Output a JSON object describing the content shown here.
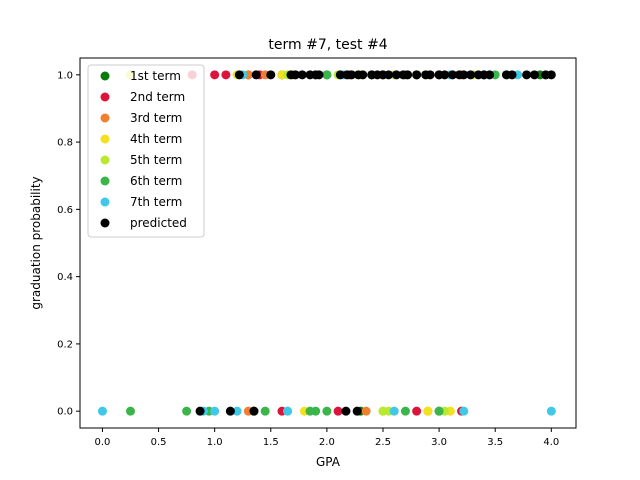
{
  "chart_data": {
    "type": "scatter",
    "title": "term #7, test #4",
    "xlabel": "GPA",
    "ylabel": "graduation probability",
    "xlim": [
      -0.2,
      4.22
    ],
    "ylim": [
      -0.05,
      1.05
    ],
    "xticks": [
      0.0,
      0.5,
      1.0,
      1.5,
      2.0,
      2.5,
      3.0,
      3.5,
      4.0
    ],
    "xtick_labels": [
      "0.0",
      "0.5",
      "1.0",
      "1.5",
      "2.0",
      "2.5",
      "3.0",
      "3.5",
      "4.0"
    ],
    "yticks": [
      0.0,
      0.2,
      0.4,
      0.6,
      0.8,
      1.0
    ],
    "ytick_labels": [
      "0.0",
      "0.2",
      "0.4",
      "0.6",
      "0.8",
      "1.0"
    ],
    "grid": false,
    "legend_position": "upper-left",
    "series": [
      {
        "name": "1st term",
        "color": "#0b7a0b",
        "points": [
          [
            0.25,
            1.0
          ],
          [
            1.3,
            1.0
          ],
          [
            1.6,
            1.0
          ],
          [
            2.0,
            1.0
          ],
          [
            2.4,
            1.0
          ],
          [
            2.8,
            1.0
          ],
          [
            3.4,
            1.0
          ],
          [
            3.9,
            1.0
          ],
          [
            1.35,
            0.0
          ],
          [
            2.3,
            0.0
          ],
          [
            3.0,
            0.0
          ]
        ]
      },
      {
        "name": "2nd term",
        "color": "#dc143c",
        "points": [
          [
            0.8,
            1.0
          ],
          [
            1.0,
            1.0
          ],
          [
            1.1,
            1.0
          ],
          [
            1.4,
            1.0
          ],
          [
            2.2,
            1.0
          ],
          [
            3.0,
            1.0
          ],
          [
            1.6,
            0.0
          ],
          [
            2.1,
            0.0
          ],
          [
            2.8,
            0.0
          ],
          [
            3.2,
            0.0
          ]
        ]
      },
      {
        "name": "3rd term",
        "color": "#f08030",
        "points": [
          [
            1.3,
            1.0
          ],
          [
            1.45,
            1.0
          ],
          [
            1.7,
            1.0
          ],
          [
            2.5,
            1.0
          ],
          [
            3.2,
            1.0
          ],
          [
            1.3,
            0.0
          ],
          [
            2.35,
            0.0
          ],
          [
            2.9,
            0.0
          ]
        ]
      },
      {
        "name": "4th term",
        "color": "#f5e01e",
        "points": [
          [
            0.25,
            1.0
          ],
          [
            1.2,
            1.0
          ],
          [
            1.6,
            1.0
          ],
          [
            2.3,
            1.0
          ],
          [
            2.9,
            1.0
          ],
          [
            3.6,
            1.0
          ],
          [
            1.8,
            0.0
          ],
          [
            2.5,
            0.0
          ],
          [
            2.9,
            0.0
          ],
          [
            3.1,
            0.0
          ]
        ]
      },
      {
        "name": "5th term",
        "color": "#b8e830",
        "points": [
          [
            1.65,
            1.0
          ],
          [
            2.1,
            1.0
          ],
          [
            2.6,
            1.0
          ],
          [
            3.3,
            1.0
          ],
          [
            1.65,
            0.0
          ],
          [
            2.5,
            0.0
          ],
          [
            2.55,
            0.0
          ],
          [
            3.05,
            0.0
          ]
        ]
      },
      {
        "name": "6th term",
        "color": "#3ab54a",
        "points": [
          [
            1.9,
            1.0
          ],
          [
            2.0,
            1.0
          ],
          [
            2.7,
            1.0
          ],
          [
            3.5,
            1.0
          ],
          [
            0.25,
            0.0
          ],
          [
            0.75,
            0.0
          ],
          [
            0.95,
            0.0
          ],
          [
            1.45,
            0.0
          ],
          [
            1.85,
            0.0
          ],
          [
            1.9,
            0.0
          ],
          [
            2.0,
            0.0
          ],
          [
            2.7,
            0.0
          ],
          [
            3.0,
            0.0
          ]
        ]
      },
      {
        "name": "7th term",
        "color": "#40c8e8",
        "points": [
          [
            1.25,
            1.0
          ],
          [
            2.15,
            1.0
          ],
          [
            3.1,
            1.0
          ],
          [
            3.45,
            1.0
          ],
          [
            3.7,
            1.0
          ],
          [
            3.95,
            1.0
          ],
          [
            0.0,
            0.0
          ],
          [
            0.9,
            0.0
          ],
          [
            1.0,
            0.0
          ],
          [
            1.2,
            0.0
          ],
          [
            1.65,
            0.0
          ],
          [
            2.6,
            0.0
          ],
          [
            3.22,
            0.0
          ],
          [
            4.0,
            0.0
          ]
        ]
      },
      {
        "name": "predicted",
        "color": "#000000",
        "points": [
          [
            1.22,
            1.0
          ],
          [
            1.37,
            1.0
          ],
          [
            1.5,
            1.0
          ],
          [
            1.68,
            1.0
          ],
          [
            1.72,
            1.0
          ],
          [
            1.78,
            1.0
          ],
          [
            1.85,
            1.0
          ],
          [
            1.9,
            1.0
          ],
          [
            1.93,
            1.0
          ],
          [
            2.12,
            1.0
          ],
          [
            2.18,
            1.0
          ],
          [
            2.22,
            1.0
          ],
          [
            2.28,
            1.0
          ],
          [
            2.32,
            1.0
          ],
          [
            2.4,
            1.0
          ],
          [
            2.45,
            1.0
          ],
          [
            2.5,
            1.0
          ],
          [
            2.55,
            1.0
          ],
          [
            2.62,
            1.0
          ],
          [
            2.68,
            1.0
          ],
          [
            2.72,
            1.0
          ],
          [
            2.8,
            1.0
          ],
          [
            2.88,
            1.0
          ],
          [
            2.92,
            1.0
          ],
          [
            3.0,
            1.0
          ],
          [
            3.05,
            1.0
          ],
          [
            3.12,
            1.0
          ],
          [
            3.18,
            1.0
          ],
          [
            3.22,
            1.0
          ],
          [
            3.28,
            1.0
          ],
          [
            3.35,
            1.0
          ],
          [
            3.4,
            1.0
          ],
          [
            3.45,
            1.0
          ],
          [
            3.6,
            1.0
          ],
          [
            3.65,
            1.0
          ],
          [
            3.78,
            1.0
          ],
          [
            3.85,
            1.0
          ],
          [
            3.95,
            1.0
          ],
          [
            4.0,
            1.0
          ],
          [
            0.87,
            0.0
          ],
          [
            1.14,
            0.0
          ],
          [
            1.35,
            0.0
          ],
          [
            2.17,
            0.0
          ],
          [
            2.27,
            0.0
          ]
        ]
      }
    ]
  }
}
